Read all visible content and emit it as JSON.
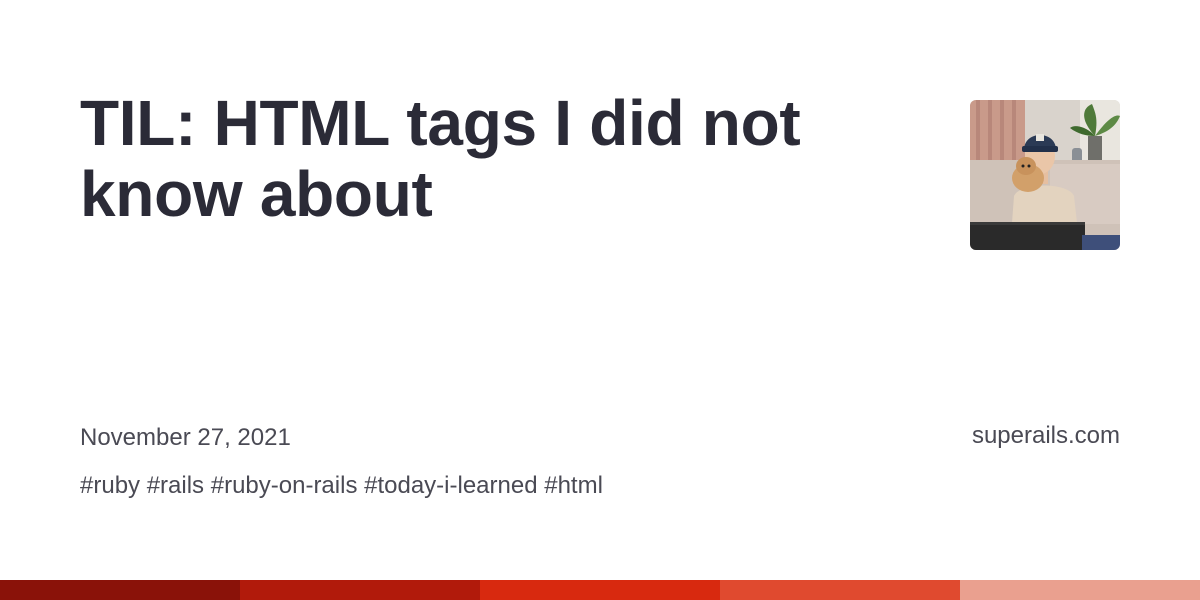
{
  "post": {
    "title": "TIL: HTML tags I did not know about",
    "date": "November 27, 2021",
    "tags": "#ruby #rails #ruby-on-rails #today-i-learned #html"
  },
  "site": {
    "name": "superails.com"
  },
  "avatar": {
    "icon": "author-photo"
  },
  "colors": {
    "title": "#2b2b37",
    "meta_text": "#4a4a54",
    "stripe": [
      "#8a1209",
      "#b11a0b",
      "#d8290f",
      "#e04a2f",
      "#eaa08f"
    ]
  }
}
